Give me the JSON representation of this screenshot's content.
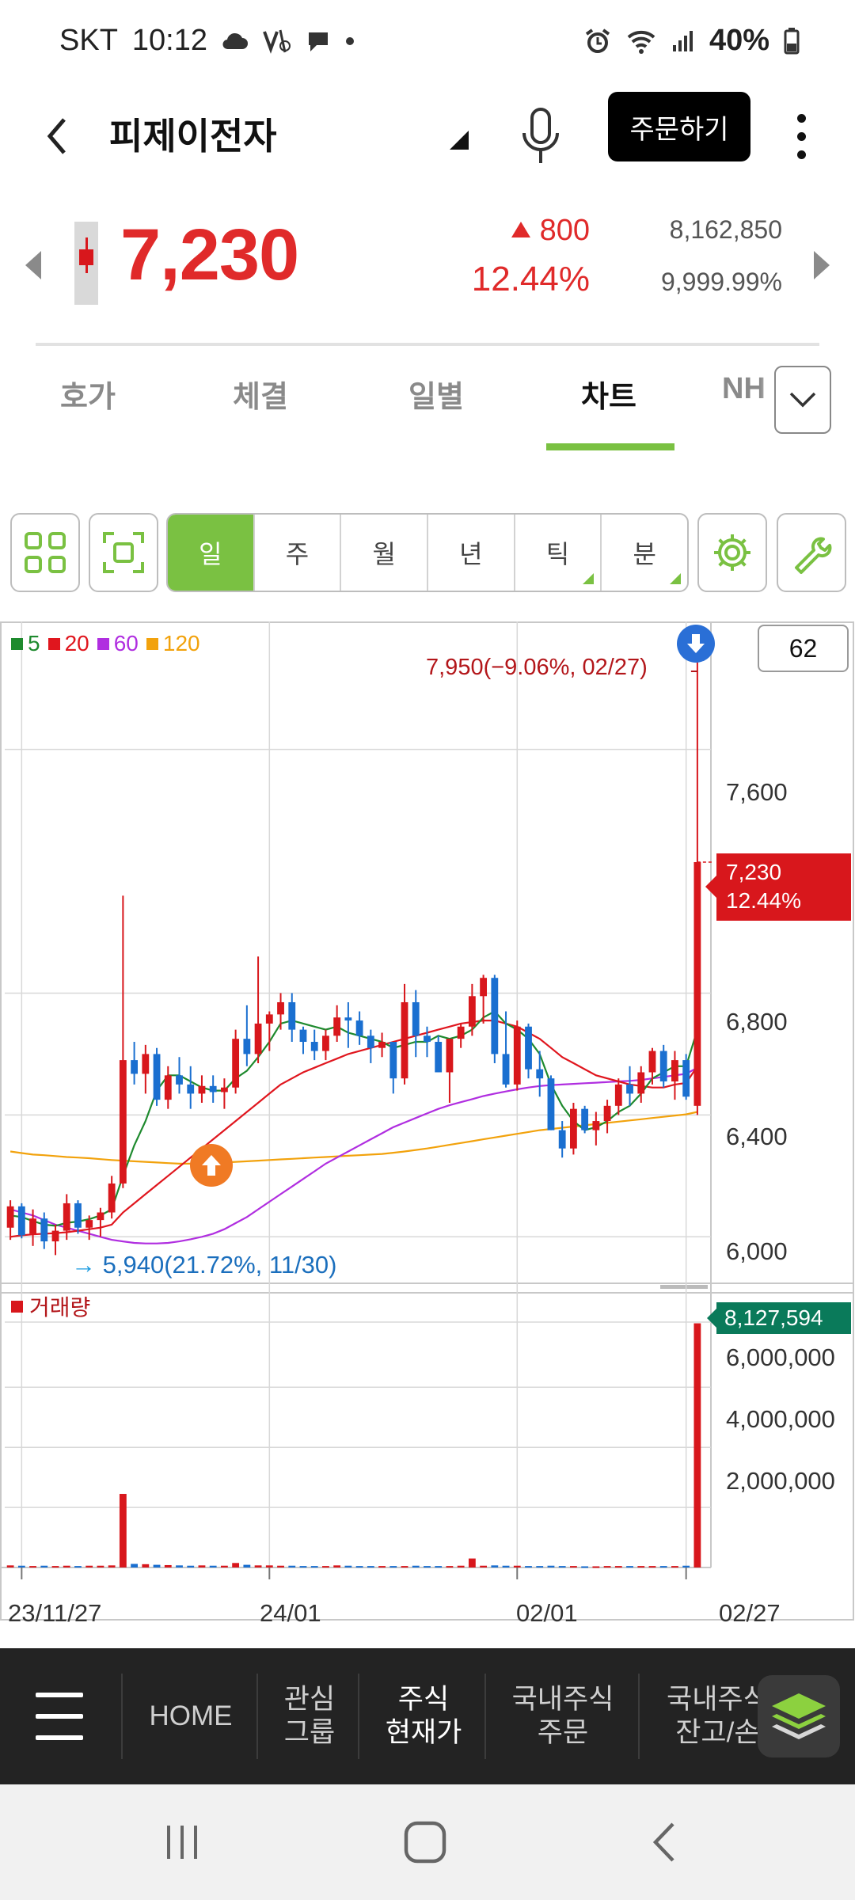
{
  "status_bar": {
    "carrier": "SKT",
    "time": "10:12",
    "battery": "40%",
    "icons": [
      "cloud-icon",
      "volte-icon",
      "chat-icon",
      "dot-icon",
      "alarm-icon",
      "wifi-icon",
      "signal-icon",
      "battery-icon"
    ]
  },
  "header": {
    "stock_name": "피제이전자",
    "order_button": "주문하기",
    "icons": [
      "back-arrow-icon",
      "mic-icon",
      "more-vertical-icon"
    ]
  },
  "price": {
    "current": "7,230",
    "change_amount": "800",
    "change_percent": "12.44%",
    "volume": "8,162,850",
    "turnover_rate": "9,999.99%",
    "up_color": "#e02a2a"
  },
  "tabs": {
    "items": [
      "호가",
      "체결",
      "일별",
      "차트",
      "NH"
    ],
    "active": "차트",
    "accent": "#7ac142"
  },
  "toolbar": {
    "periods": [
      "일",
      "주",
      "월",
      "년",
      "틱",
      "분"
    ],
    "active_period": "일",
    "icons": [
      "grid-icon",
      "fullscreen-icon",
      "settings-gear-icon",
      "wrench-icon"
    ]
  },
  "chart": {
    "ma_legend": [
      {
        "label": "5",
        "color": "#1e8a2e"
      },
      {
        "label": "20",
        "color": "#e0161e"
      },
      {
        "label": "60",
        "color": "#b02ee0"
      },
      {
        "label": "120",
        "color": "#f2a20c"
      }
    ],
    "candle_count": "62",
    "high_annotation": "7,950(−9.06%, 02/27)",
    "low_annotation": "5,940(21.72%, 11/30)",
    "current_tag_price": "7,230",
    "current_tag_pct": "12.44%",
    "volume_label": "거래량",
    "volume_tag": "8,127,594",
    "price_axis": [
      "7,600",
      "6,800",
      "6,400",
      "6,000"
    ],
    "volume_axis": [
      "6,000,000",
      "4,000,000",
      "2,000,000"
    ],
    "date_axis": [
      "23/11/27",
      "24/01",
      "02/01",
      "02/27"
    ]
  },
  "chart_data": {
    "type": "candlestick",
    "candles": [
      [
        6030,
        6120,
        5990,
        6100
      ],
      [
        6100,
        6110,
        5995,
        6005
      ],
      [
        6010,
        6090,
        5970,
        6060
      ],
      [
        6060,
        6080,
        5960,
        5985
      ],
      [
        5985,
        6040,
        5940,
        6020
      ],
      [
        6020,
        6140,
        5990,
        6110
      ],
      [
        6110,
        6120,
        6010,
        6030
      ],
      [
        6030,
        6070,
        5990,
        6055
      ],
      [
        6055,
        6095,
        6000,
        6080
      ],
      [
        6080,
        6200,
        6060,
        6175
      ],
      [
        6175,
        7120,
        6160,
        6580
      ],
      [
        6580,
        6640,
        6500,
        6535
      ],
      [
        6535,
        6630,
        6470,
        6600
      ],
      [
        6600,
        6620,
        6430,
        6450
      ],
      [
        6450,
        6560,
        6420,
        6530
      ],
      [
        6530,
        6590,
        6470,
        6500
      ],
      [
        6500,
        6560,
        6420,
        6470
      ],
      [
        6470,
        6530,
        6440,
        6495
      ],
      [
        6495,
        6530,
        6440,
        6475
      ],
      [
        6475,
        6520,
        6420,
        6490
      ],
      [
        6490,
        6680,
        6470,
        6650
      ],
      [
        6650,
        6760,
        6560,
        6600
      ],
      [
        6600,
        6920,
        6570,
        6700
      ],
      [
        6700,
        6740,
        6610,
        6730
      ],
      [
        6730,
        6800,
        6680,
        6770
      ],
      [
        6770,
        6800,
        6640,
        6680
      ],
      [
        6680,
        6690,
        6600,
        6640
      ],
      [
        6640,
        6680,
        6580,
        6610
      ],
      [
        6610,
        6680,
        6580,
        6660
      ],
      [
        6660,
        6760,
        6640,
        6720
      ],
      [
        6720,
        6770,
        6620,
        6710
      ],
      [
        6710,
        6740,
        6630,
        6660
      ],
      [
        6660,
        6680,
        6570,
        6620
      ],
      [
        6620,
        6670,
        6590,
        6640
      ],
      [
        6640,
        6640,
        6470,
        6520
      ],
      [
        6520,
        6830,
        6500,
        6770
      ],
      [
        6770,
        6810,
        6590,
        6660
      ],
      [
        6660,
        6690,
        6590,
        6640
      ],
      [
        6640,
        6660,
        6540,
        6540
      ],
      [
        6540,
        6650,
        6440,
        6650
      ],
      [
        6650,
        6700,
        6620,
        6690
      ],
      [
        6690,
        6830,
        6660,
        6790
      ],
      [
        6790,
        6860,
        6700,
        6850
      ],
      [
        6850,
        6860,
        6570,
        6600
      ],
      [
        6600,
        6740,
        6490,
        6500
      ],
      [
        6500,
        6710,
        6480,
        6690
      ],
      [
        6690,
        6700,
        6520,
        6550
      ],
      [
        6550,
        6610,
        6460,
        6520
      ],
      [
        6520,
        6530,
        6350,
        6350
      ],
      [
        6350,
        6380,
        6260,
        6290
      ],
      [
        6290,
        6440,
        6270,
        6420
      ],
      [
        6420,
        6430,
        6340,
        6350
      ],
      [
        6350,
        6410,
        6300,
        6380
      ],
      [
        6380,
        6450,
        6340,
        6430
      ],
      [
        6430,
        6520,
        6400,
        6500
      ],
      [
        6500,
        6560,
        6430,
        6470
      ],
      [
        6470,
        6560,
        6440,
        6540
      ],
      [
        6540,
        6620,
        6500,
        6610
      ],
      [
        6610,
        6630,
        6490,
        6510
      ],
      [
        6510,
        6610,
        6450,
        6580
      ],
      [
        6580,
        6600,
        6450,
        6460
      ],
      [
        6430,
        7950,
        6400,
        7230
      ]
    ],
    "ma5": [
      6070,
      6065,
      6052,
      6040,
      6036,
      6046,
      6050,
      6058,
      6070,
      6090,
      6200,
      6300,
      6380,
      6480,
      6530,
      6530,
      6510,
      6490,
      6480,
      6480,
      6520,
      6545,
      6590,
      6640,
      6700,
      6710,
      6700,
      6690,
      6680,
      6690,
      6670,
      6660,
      6650,
      6640,
      6620,
      6630,
      6640,
      6640,
      6660,
      6650,
      6660,
      6680,
      6720,
      6740,
      6700,
      6680,
      6650,
      6600,
      6500,
      6430,
      6380,
      6350,
      6360,
      6380,
      6410,
      6430,
      6470,
      6520,
      6540,
      6560,
      6560,
      6680
    ],
    "ma20": [
      6000,
      6005,
      6008,
      6010,
      6012,
      6015,
      6020,
      6025,
      6030,
      6040,
      6080,
      6110,
      6140,
      6170,
      6200,
      6230,
      6260,
      6290,
      6320,
      6350,
      6380,
      6410,
      6440,
      6470,
      6500,
      6520,
      6540,
      6555,
      6570,
      6585,
      6600,
      6610,
      6620,
      6630,
      6640,
      6650,
      6660,
      6670,
      6680,
      6690,
      6700,
      6705,
      6710,
      6710,
      6700,
      6690,
      6670,
      6650,
      6620,
      6590,
      6570,
      6550,
      6530,
      6520,
      6510,
      6500,
      6495,
      6490,
      6490,
      6500,
      6505,
      6560
    ],
    "ma60": [
      6090,
      6080,
      6070,
      6055,
      6040,
      6030,
      6020,
      6010,
      6000,
      5990,
      5985,
      5980,
      5978,
      5978,
      5980,
      5985,
      5992,
      6000,
      6010,
      6025,
      6045,
      6065,
      6090,
      6115,
      6140,
      6165,
      6190,
      6215,
      6240,
      6260,
      6280,
      6300,
      6320,
      6340,
      6360,
      6375,
      6390,
      6405,
      6420,
      6432,
      6442,
      6452,
      6462,
      6470,
      6477,
      6484,
      6490,
      6495,
      6498,
      6500,
      6502,
      6504,
      6506,
      6508,
      6510,
      6512,
      6515,
      6520,
      6525,
      6530,
      6535,
      6555
    ],
    "ma120": [
      6280,
      6275,
      6270,
      6268,
      6265,
      6262,
      6260,
      6258,
      6255,
      6252,
      6250,
      6248,
      6246,
      6244,
      6242,
      6240,
      6240,
      6240,
      6242,
      6244,
      6246,
      6248,
      6250,
      6252,
      6254,
      6256,
      6258,
      6260,
      6262,
      6264,
      6266,
      6268,
      6270,
      6272,
      6276,
      6280,
      6285,
      6290,
      6296,
      6302,
      6308,
      6314,
      6320,
      6326,
      6332,
      6338,
      6344,
      6350,
      6354,
      6358,
      6362,
      6366,
      6370,
      6374,
      6378,
      6382,
      6386,
      6390,
      6394,
      6398,
      6402,
      6410
    ],
    "volumes": [
      70000,
      60000,
      50000,
      60000,
      50000,
      60000,
      50000,
      60000,
      60000,
      70000,
      2450000,
      120000,
      110000,
      90000,
      80000,
      70000,
      60000,
      70000,
      60000,
      60000,
      150000,
      90000,
      70000,
      70000,
      60000,
      60000,
      50000,
      50000,
      50000,
      70000,
      60000,
      50000,
      50000,
      50000,
      50000,
      50000,
      60000,
      50000,
      50000,
      50000,
      60000,
      300000,
      60000,
      70000,
      60000,
      60000,
      50000,
      50000,
      60000,
      50000,
      50000,
      40000,
      40000,
      50000,
      50000,
      50000,
      50000,
      50000,
      50000,
      50000,
      60000,
      8127594
    ],
    "price_ylim": [
      5850,
      8020
    ],
    "volume_ylim": [
      0,
      8300000
    ]
  },
  "bottom_nav": {
    "items": [
      "HOME",
      "관심\n그룹",
      "주식\n현재가",
      "국내주식\n주문",
      "국내주식\n잔고/손"
    ],
    "active_index": 2,
    "icons": [
      "hamburger-menu-icon",
      "layers-icon"
    ]
  },
  "system_nav": {
    "icons": [
      "recent-apps-icon",
      "home-icon",
      "back-icon"
    ]
  }
}
